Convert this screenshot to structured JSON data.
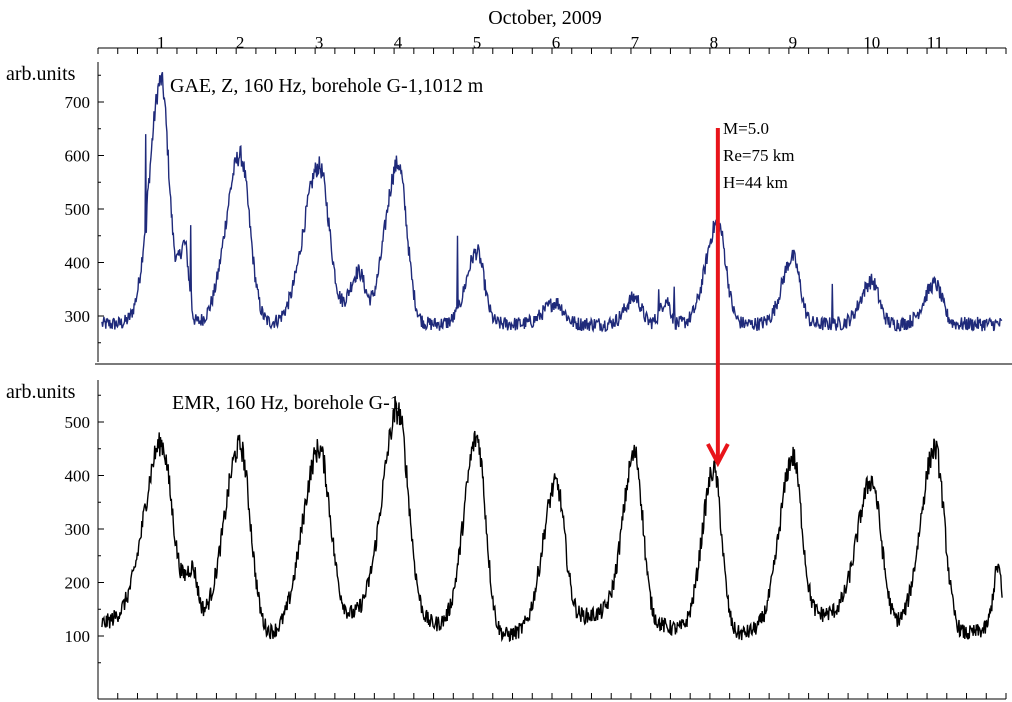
{
  "colors": {
    "gae_line": "#1f2a7a",
    "emr_line": "#000000",
    "arrow": "#e8141a",
    "divider": "#7a7a7a"
  },
  "chart_data": [
    {
      "type": "line",
      "title": "GAE, Z, 160 Hz, borehole G-1,1012 m",
      "top_axis_label": "October, 2009",
      "top_axis_ticks": [
        "1",
        "2",
        "3",
        "4",
        "5",
        "6",
        "7",
        "8",
        "9",
        "10",
        "11"
      ],
      "top_axis_tick_days": [
        0.8,
        1.8,
        2.8,
        3.8,
        4.8,
        5.8,
        6.8,
        7.8,
        8.8,
        9.8,
        10.6
      ],
      "xlim": [
        0.0,
        11.5
      ],
      "ylabel": "arb.units",
      "ylim": [
        240,
        750
      ],
      "yticks": [
        300,
        400,
        500,
        600,
        700
      ],
      "series": [
        {
          "peaks": [
            [
              0.8,
              740,
              0.1
            ],
            [
              1.1,
              430,
              0.05
            ],
            [
              1.8,
              600,
              0.12
            ],
            [
              2.8,
              580,
              0.13
            ],
            [
              3.3,
              380,
              0.08
            ],
            [
              3.8,
              585,
              0.11
            ],
            [
              4.8,
              420,
              0.09
            ],
            [
              5.8,
              325,
              0.1
            ],
            [
              6.8,
              335,
              0.08
            ],
            [
              7.2,
              330,
              0.05
            ],
            [
              7.85,
              475,
              0.1
            ],
            [
              8.8,
              410,
              0.09
            ],
            [
              9.8,
              365,
              0.09
            ],
            [
              10.6,
              360,
              0.09
            ]
          ],
          "spikes": [
            [
              0.6,
              640
            ],
            [
              1.17,
              470
            ],
            [
              4.55,
              450
            ],
            [
              7.1,
              350
            ],
            [
              7.3,
              355
            ],
            [
              9.3,
              360
            ]
          ]
        }
      ]
    },
    {
      "type": "line",
      "title": "EMR, 160 Hz, borehole G-1",
      "xlim": [
        0.0,
        11.5
      ],
      "ylabel": "arb.units",
      "ylim": [
        30,
        530
      ],
      "yticks": [
        100,
        200,
        300,
        400,
        500
      ],
      "series": [
        {
          "peaks": [
            [
              0.8,
              460,
              0.14
            ],
            [
              1.2,
              220,
              0.06
            ],
            [
              1.8,
              455,
              0.13
            ],
            [
              2.8,
              450,
              0.14
            ],
            [
              3.8,
              520,
              0.13
            ],
            [
              4.8,
              470,
              0.11
            ],
            [
              5.8,
              385,
              0.11
            ],
            [
              6.8,
              440,
              0.1
            ],
            [
              7.8,
              410,
              0.1
            ],
            [
              8.8,
              435,
              0.11
            ],
            [
              9.8,
              390,
              0.12
            ],
            [
              10.6,
              450,
              0.12
            ],
            [
              11.4,
              230,
              0.04
            ]
          ],
          "spikes": []
        }
      ]
    }
  ],
  "annotation": {
    "event_day": 7.8,
    "lines": [
      "M=5.0",
      "Re=75 km",
      "H=44 km"
    ]
  }
}
